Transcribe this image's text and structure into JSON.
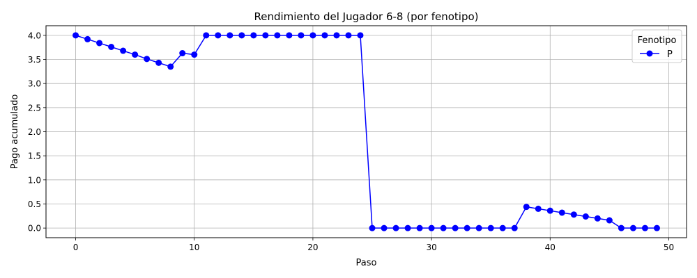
{
  "chart_data": {
    "type": "line",
    "title": "Rendimiento del Jugador 6-8 (por fenotipo)",
    "xlabel": "Paso",
    "ylabel": "Pago acumulado",
    "xlim": [
      -2.5,
      51.5
    ],
    "ylim": [
      -0.2,
      4.2
    ],
    "xticks": [
      0,
      10,
      20,
      30,
      40,
      50
    ],
    "xtick_labels": [
      "0",
      "10",
      "20",
      "30",
      "40",
      "50"
    ],
    "yticks": [
      0.0,
      0.5,
      1.0,
      1.5,
      2.0,
      2.5,
      3.0,
      3.5,
      4.0
    ],
    "ytick_labels": [
      "0.0",
      "0.5",
      "1.0",
      "1.5",
      "2.0",
      "2.5",
      "3.0",
      "3.5",
      "4.0"
    ],
    "grid": true,
    "legend": {
      "title": "Fenotipo",
      "position": "top-right"
    },
    "series": [
      {
        "name": "P",
        "color": "#0000ff",
        "marker": "circle",
        "x": [
          0,
          1,
          2,
          3,
          4,
          5,
          6,
          7,
          8,
          9,
          10,
          11,
          12,
          13,
          14,
          15,
          16,
          17,
          18,
          19,
          20,
          21,
          22,
          23,
          24,
          25,
          26,
          27,
          28,
          29,
          30,
          31,
          32,
          33,
          34,
          35,
          36,
          37,
          38,
          39,
          40,
          41,
          42,
          43,
          44,
          45,
          46,
          47,
          48,
          49
        ],
        "y": [
          4.0,
          3.92,
          3.84,
          3.76,
          3.68,
          3.6,
          3.51,
          3.43,
          3.35,
          3.63,
          3.6,
          4.0,
          4.0,
          4.0,
          4.0,
          4.0,
          4.0,
          4.0,
          4.0,
          4.0,
          4.0,
          4.0,
          4.0,
          4.0,
          4.0,
          0.0,
          0.0,
          0.0,
          0.0,
          0.0,
          0.0,
          0.0,
          0.0,
          0.0,
          0.0,
          0.0,
          0.0,
          0.0,
          0.44,
          0.4,
          0.36,
          0.32,
          0.28,
          0.24,
          0.2,
          0.16,
          0.0,
          0.0,
          0.0,
          0.0
        ]
      }
    ]
  }
}
